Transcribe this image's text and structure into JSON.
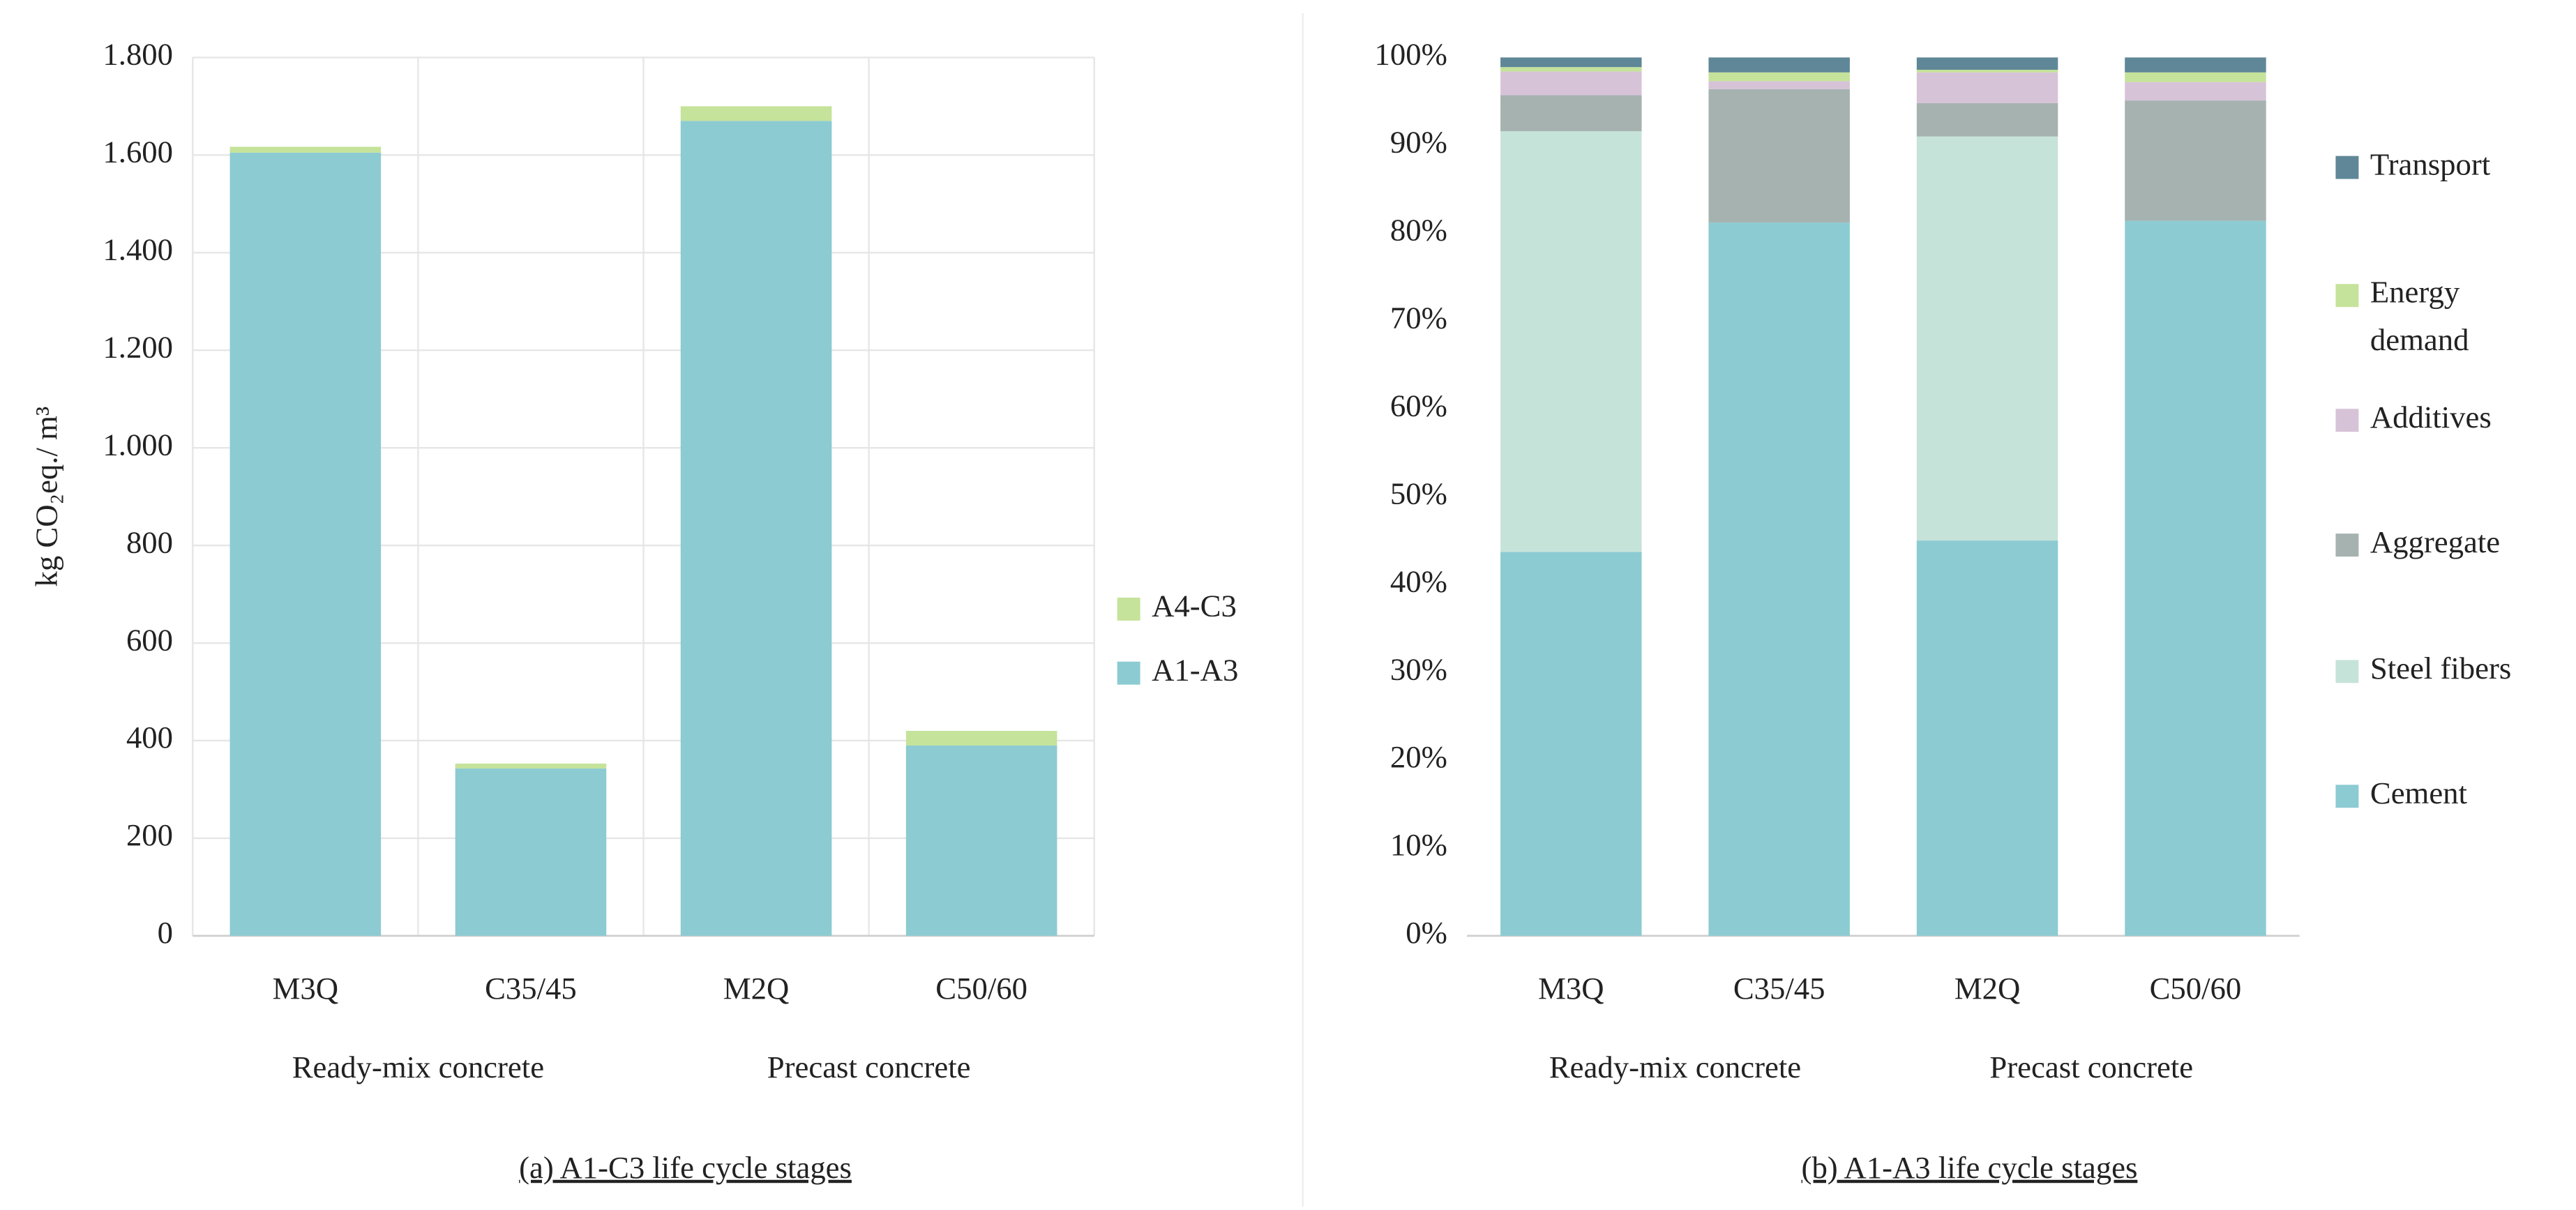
{
  "chart_data": [
    {
      "type": "bar",
      "stacked": true,
      "ylabel": "kg CO₂eq./ m³",
      "caption": "(a) A1-C3 life cycle stages",
      "categories": [
        "M3Q",
        "C35/45",
        "M2Q",
        "C50/60"
      ],
      "groups": [
        "Ready-mix concrete",
        "Precast concrete"
      ],
      "series": [
        {
          "name": "A1-A3",
          "color": "#8ccbd2",
          "values": [
            1605,
            343,
            1670,
            390
          ]
        },
        {
          "name": "A4-C3",
          "color": "#c5e39a",
          "values": [
            12,
            10,
            30,
            30
          ]
        }
      ],
      "ylim": [
        0,
        1800
      ],
      "yticks": [
        0,
        200,
        400,
        600,
        800,
        {
          "value": 1000,
          "label": "1.000"
        },
        {
          "value": 1200,
          "label": "1.200"
        },
        {
          "value": 1400,
          "label": "1.400"
        },
        {
          "value": 1600,
          "label": "1.600"
        },
        {
          "value": 1800,
          "label": "1.800"
        }
      ],
      "grid": true,
      "legend": "right"
    },
    {
      "type": "bar",
      "stacked": true,
      "caption": "(b) A1-A3 life cycle stages",
      "categories": [
        "M3Q",
        "C35/45",
        "M2Q",
        "C50/60"
      ],
      "groups": [
        "Ready-mix concrete",
        "Precast concrete"
      ],
      "series": [
        {
          "name": "Cement",
          "color": "#8ccbd2",
          "values": [
            43.7,
            81.2,
            45.0,
            81.4
          ]
        },
        {
          "name": "Steel fibers",
          "color": "#c6e3da",
          "values": [
            47.9,
            0,
            46.0,
            0
          ]
        },
        {
          "name": "Aggregate",
          "color": "#a5b2b0",
          "values": [
            4.1,
            15.2,
            3.8,
            13.7
          ]
        },
        {
          "name": "Additives",
          "color": "#d7c3d8",
          "values": [
            2.7,
            0.9,
            3.5,
            2.1
          ]
        },
        {
          "name": "Energy demand",
          "color": "#c5e39a",
          "values": [
            0.5,
            1.0,
            0.3,
            1.1
          ]
        },
        {
          "name": "Transport",
          "color": "#5f8797",
          "values": [
            1.1,
            1.7,
            1.4,
            1.7
          ]
        }
      ],
      "ylim": [
        0,
        100
      ],
      "yticks": [
        {
          "value": 0,
          "label": "0%"
        },
        {
          "value": 10,
          "label": "10%"
        },
        {
          "value": 20,
          "label": "20%"
        },
        {
          "value": 30,
          "label": "30%"
        },
        {
          "value": 40,
          "label": "40%"
        },
        {
          "value": 50,
          "label": "50%"
        },
        {
          "value": 60,
          "label": "60%"
        },
        {
          "value": 70,
          "label": "70%"
        },
        {
          "value": 80,
          "label": "80%"
        },
        {
          "value": 90,
          "label": "90%"
        },
        {
          "value": 100,
          "label": "100%"
        }
      ],
      "grid": false,
      "legend": "right"
    }
  ]
}
